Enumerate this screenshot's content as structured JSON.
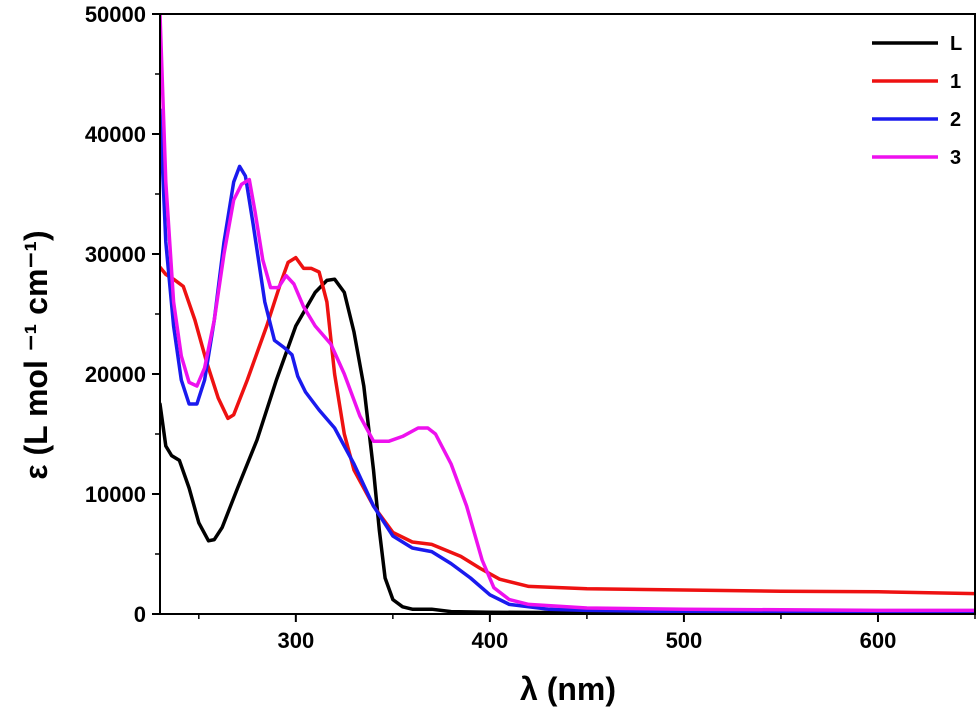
{
  "chart_data": {
    "type": "line",
    "xlabel": "λ (nm)",
    "ylabel": "ε (L mol ⁻¹ cm⁻¹)",
    "xlim": [
      230,
      650
    ],
    "ylim": [
      0,
      50000
    ],
    "x_ticks": [
      300,
      400,
      500,
      600
    ],
    "y_ticks": [
      0,
      10000,
      20000,
      30000,
      40000,
      50000
    ],
    "grid": false,
    "legend_position": "top-right",
    "series": [
      {
        "name": "L",
        "color": "#000000",
        "points": [
          [
            230,
            17500
          ],
          [
            233,
            14000
          ],
          [
            236,
            13200
          ],
          [
            240,
            12800
          ],
          [
            245,
            10500
          ],
          [
            250,
            7600
          ],
          [
            255,
            6100
          ],
          [
            258,
            6200
          ],
          [
            262,
            7200
          ],
          [
            270,
            10500
          ],
          [
            280,
            14500
          ],
          [
            290,
            19500
          ],
          [
            300,
            24000
          ],
          [
            310,
            26800
          ],
          [
            316,
            27800
          ],
          [
            320,
            27900
          ],
          [
            325,
            26800
          ],
          [
            330,
            23500
          ],
          [
            335,
            19000
          ],
          [
            340,
            12000
          ],
          [
            343,
            7000
          ],
          [
            346,
            3000
          ],
          [
            350,
            1200
          ],
          [
            355,
            600
          ],
          [
            360,
            400
          ],
          [
            370,
            400
          ],
          [
            380,
            200
          ],
          [
            400,
            150
          ],
          [
            450,
            100
          ],
          [
            500,
            50
          ],
          [
            550,
            30
          ],
          [
            600,
            20
          ],
          [
            650,
            0
          ]
        ]
      },
      {
        "name": "1",
        "color": "#ee1111",
        "points": [
          [
            230,
            28900
          ],
          [
            233,
            28300
          ],
          [
            237,
            27900
          ],
          [
            242,
            27300
          ],
          [
            248,
            24500
          ],
          [
            254,
            21000
          ],
          [
            260,
            18000
          ],
          [
            265,
            16300
          ],
          [
            268,
            16600
          ],
          [
            275,
            19500
          ],
          [
            285,
            24000
          ],
          [
            292,
            27500
          ],
          [
            296,
            29300
          ],
          [
            300,
            29700
          ],
          [
            304,
            28800
          ],
          [
            308,
            28800
          ],
          [
            312,
            28500
          ],
          [
            316,
            26000
          ],
          [
            320,
            20000
          ],
          [
            325,
            15000
          ],
          [
            330,
            12000
          ],
          [
            340,
            9000
          ],
          [
            350,
            6800
          ],
          [
            360,
            6000
          ],
          [
            370,
            5800
          ],
          [
            385,
            4800
          ],
          [
            395,
            3800
          ],
          [
            405,
            2900
          ],
          [
            420,
            2300
          ],
          [
            450,
            2100
          ],
          [
            500,
            2000
          ],
          [
            550,
            1900
          ],
          [
            600,
            1850
          ],
          [
            650,
            1700
          ]
        ]
      },
      {
        "name": "2",
        "color": "#1a1aee",
        "points": [
          [
            230,
            42000
          ],
          [
            233,
            31000
          ],
          [
            237,
            24000
          ],
          [
            241,
            19500
          ],
          [
            245,
            17500
          ],
          [
            249,
            17500
          ],
          [
            253,
            19500
          ],
          [
            258,
            24500
          ],
          [
            263,
            31000
          ],
          [
            268,
            36000
          ],
          [
            271,
            37300
          ],
          [
            274,
            36500
          ],
          [
            278,
            32500
          ],
          [
            284,
            26000
          ],
          [
            289,
            22800
          ],
          [
            294,
            22200
          ],
          [
            298,
            21600
          ],
          [
            301,
            19800
          ],
          [
            305,
            18500
          ],
          [
            312,
            17000
          ],
          [
            320,
            15500
          ],
          [
            330,
            12500
          ],
          [
            340,
            9000
          ],
          [
            350,
            6500
          ],
          [
            360,
            5500
          ],
          [
            370,
            5200
          ],
          [
            380,
            4200
          ],
          [
            390,
            3000
          ],
          [
            400,
            1600
          ],
          [
            410,
            800
          ],
          [
            430,
            400
          ],
          [
            450,
            300
          ],
          [
            500,
            200
          ],
          [
            550,
            150
          ],
          [
            600,
            150
          ],
          [
            650,
            150
          ]
        ]
      },
      {
        "name": "3",
        "color": "#ee11ee",
        "points": [
          [
            230,
            50000
          ],
          [
            233,
            36000
          ],
          [
            237,
            26000
          ],
          [
            241,
            21500
          ],
          [
            245,
            19300
          ],
          [
            249,
            19000
          ],
          [
            253,
            20500
          ],
          [
            258,
            24500
          ],
          [
            263,
            30000
          ],
          [
            268,
            34500
          ],
          [
            272,
            35800
          ],
          [
            276,
            36200
          ],
          [
            279,
            33500
          ],
          [
            283,
            29500
          ],
          [
            287,
            27200
          ],
          [
            291,
            27200
          ],
          [
            295,
            28200
          ],
          [
            299,
            27500
          ],
          [
            304,
            25600
          ],
          [
            310,
            24000
          ],
          [
            318,
            22500
          ],
          [
            325,
            20000
          ],
          [
            333,
            16500
          ],
          [
            340,
            14400
          ],
          [
            348,
            14400
          ],
          [
            355,
            14800
          ],
          [
            363,
            15500
          ],
          [
            368,
            15500
          ],
          [
            372,
            15000
          ],
          [
            380,
            12500
          ],
          [
            388,
            9000
          ],
          [
            396,
            4500
          ],
          [
            402,
            2200
          ],
          [
            410,
            1200
          ],
          [
            420,
            800
          ],
          [
            450,
            500
          ],
          [
            500,
            400
          ],
          [
            550,
            350
          ],
          [
            600,
            300
          ],
          [
            650,
            300
          ]
        ]
      }
    ]
  }
}
